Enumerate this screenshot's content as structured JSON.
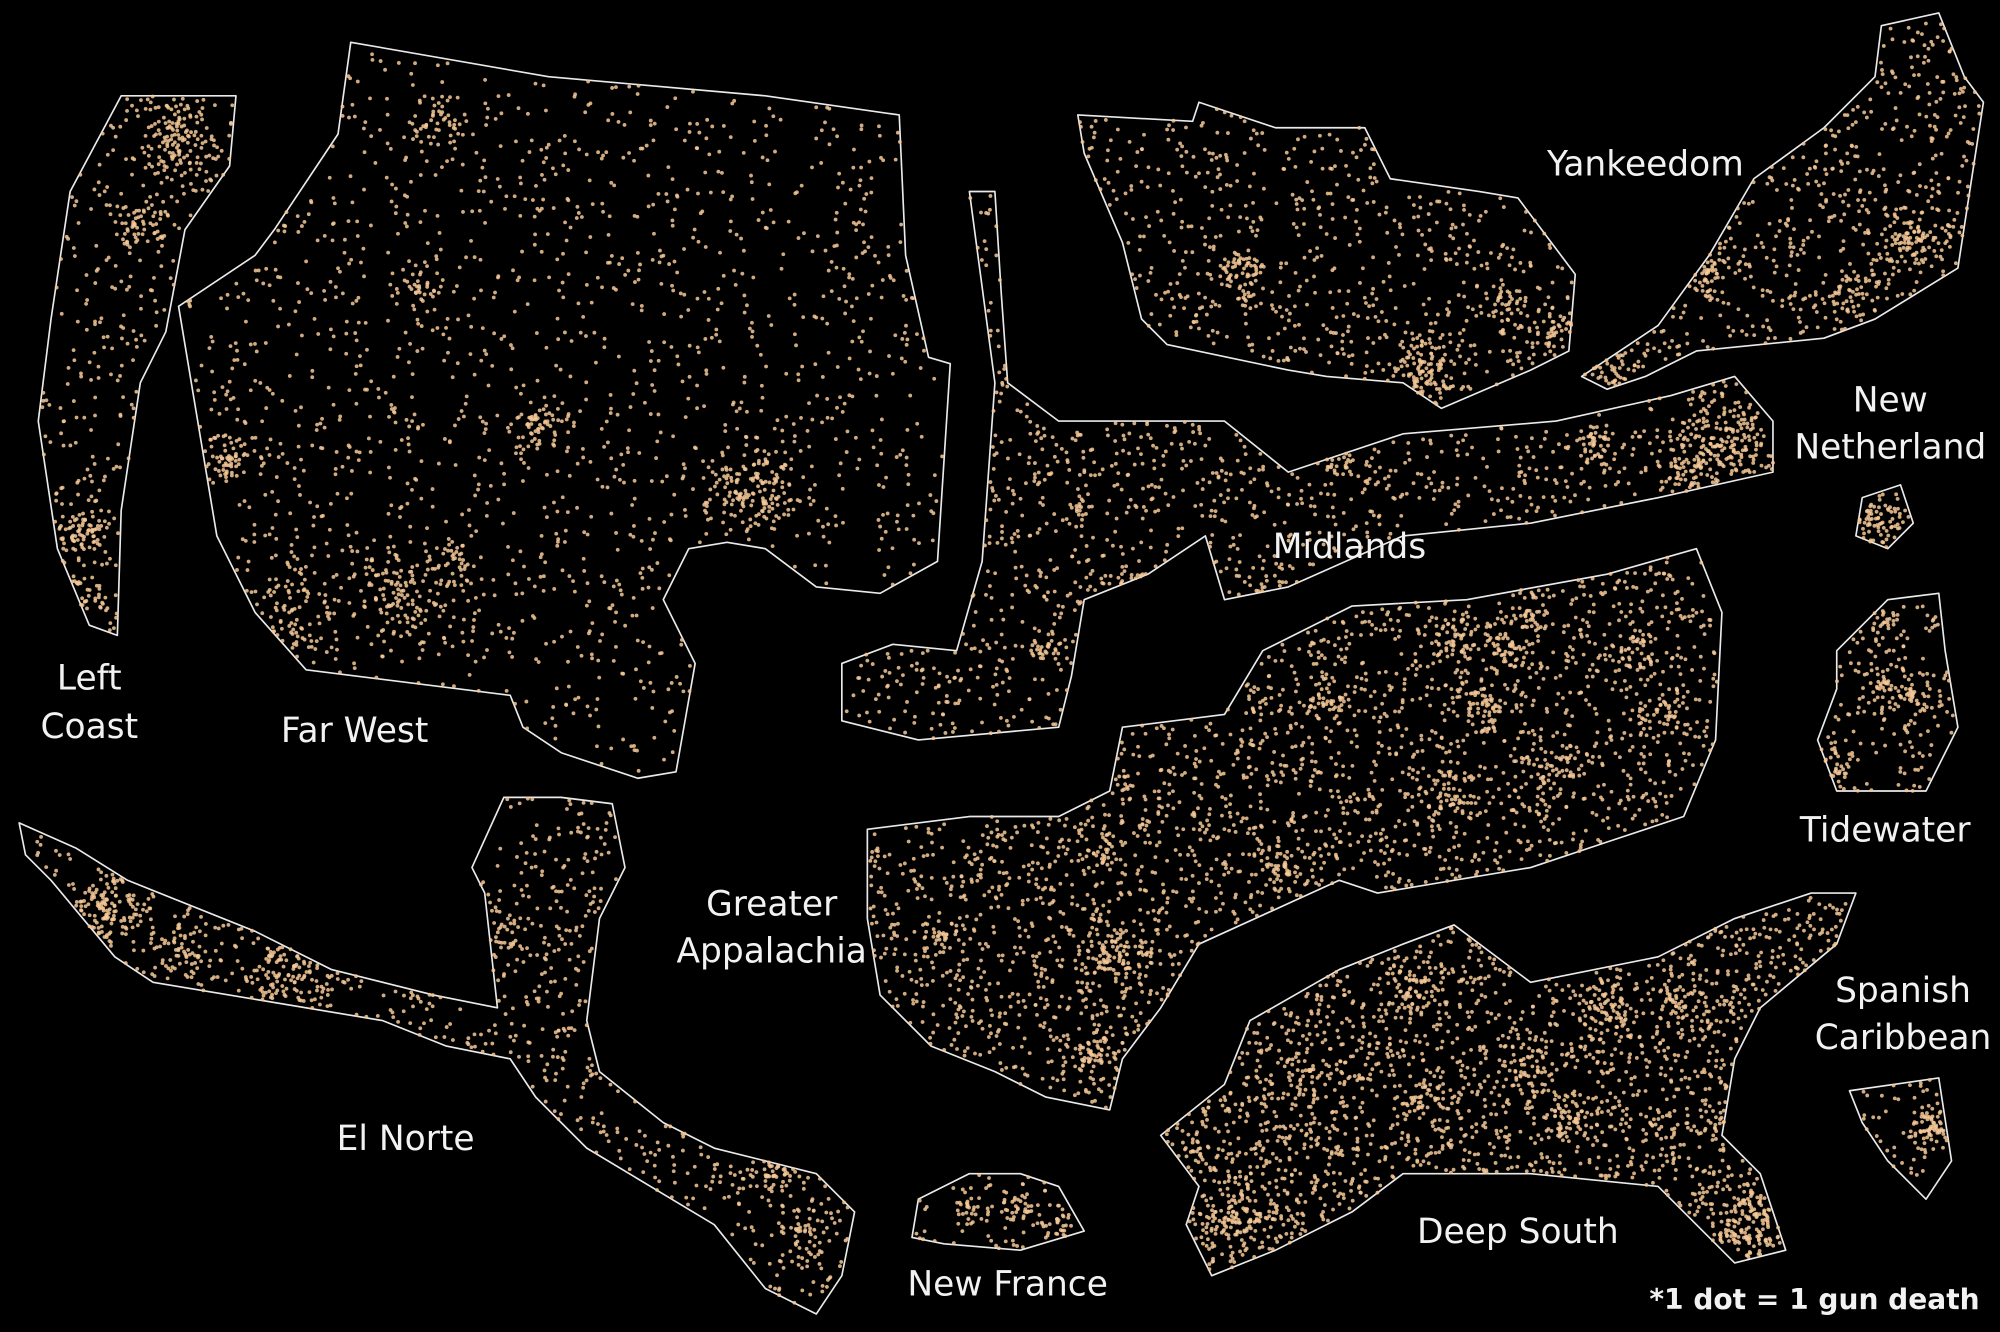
{
  "colors": {
    "background": "#000000",
    "dot": "#f5c896",
    "border": "#eaeaea",
    "text": "#f2f2f2"
  },
  "regions": {
    "left_coast": {
      "line1": "Left",
      "line2": "Coast"
    },
    "far_west": {
      "label": "Far West"
    },
    "yankeedom": {
      "label": "Yankeedom"
    },
    "new_netherland": {
      "line1": "New",
      "line2": "Netherland"
    },
    "midlands": {
      "label": "Midlands"
    },
    "tidewater": {
      "label": "Tidewater"
    },
    "greater_appalachia": {
      "line1": "Greater",
      "line2": "Appalachia"
    },
    "spanish_caribbean": {
      "line1": "Spanish",
      "line2": "Caribbean"
    },
    "el_norte": {
      "label": "El Norte"
    },
    "deep_south": {
      "label": "Deep South"
    },
    "new_france": {
      "label": "New France"
    }
  },
  "footnote": "*1 dot = 1 gun death"
}
